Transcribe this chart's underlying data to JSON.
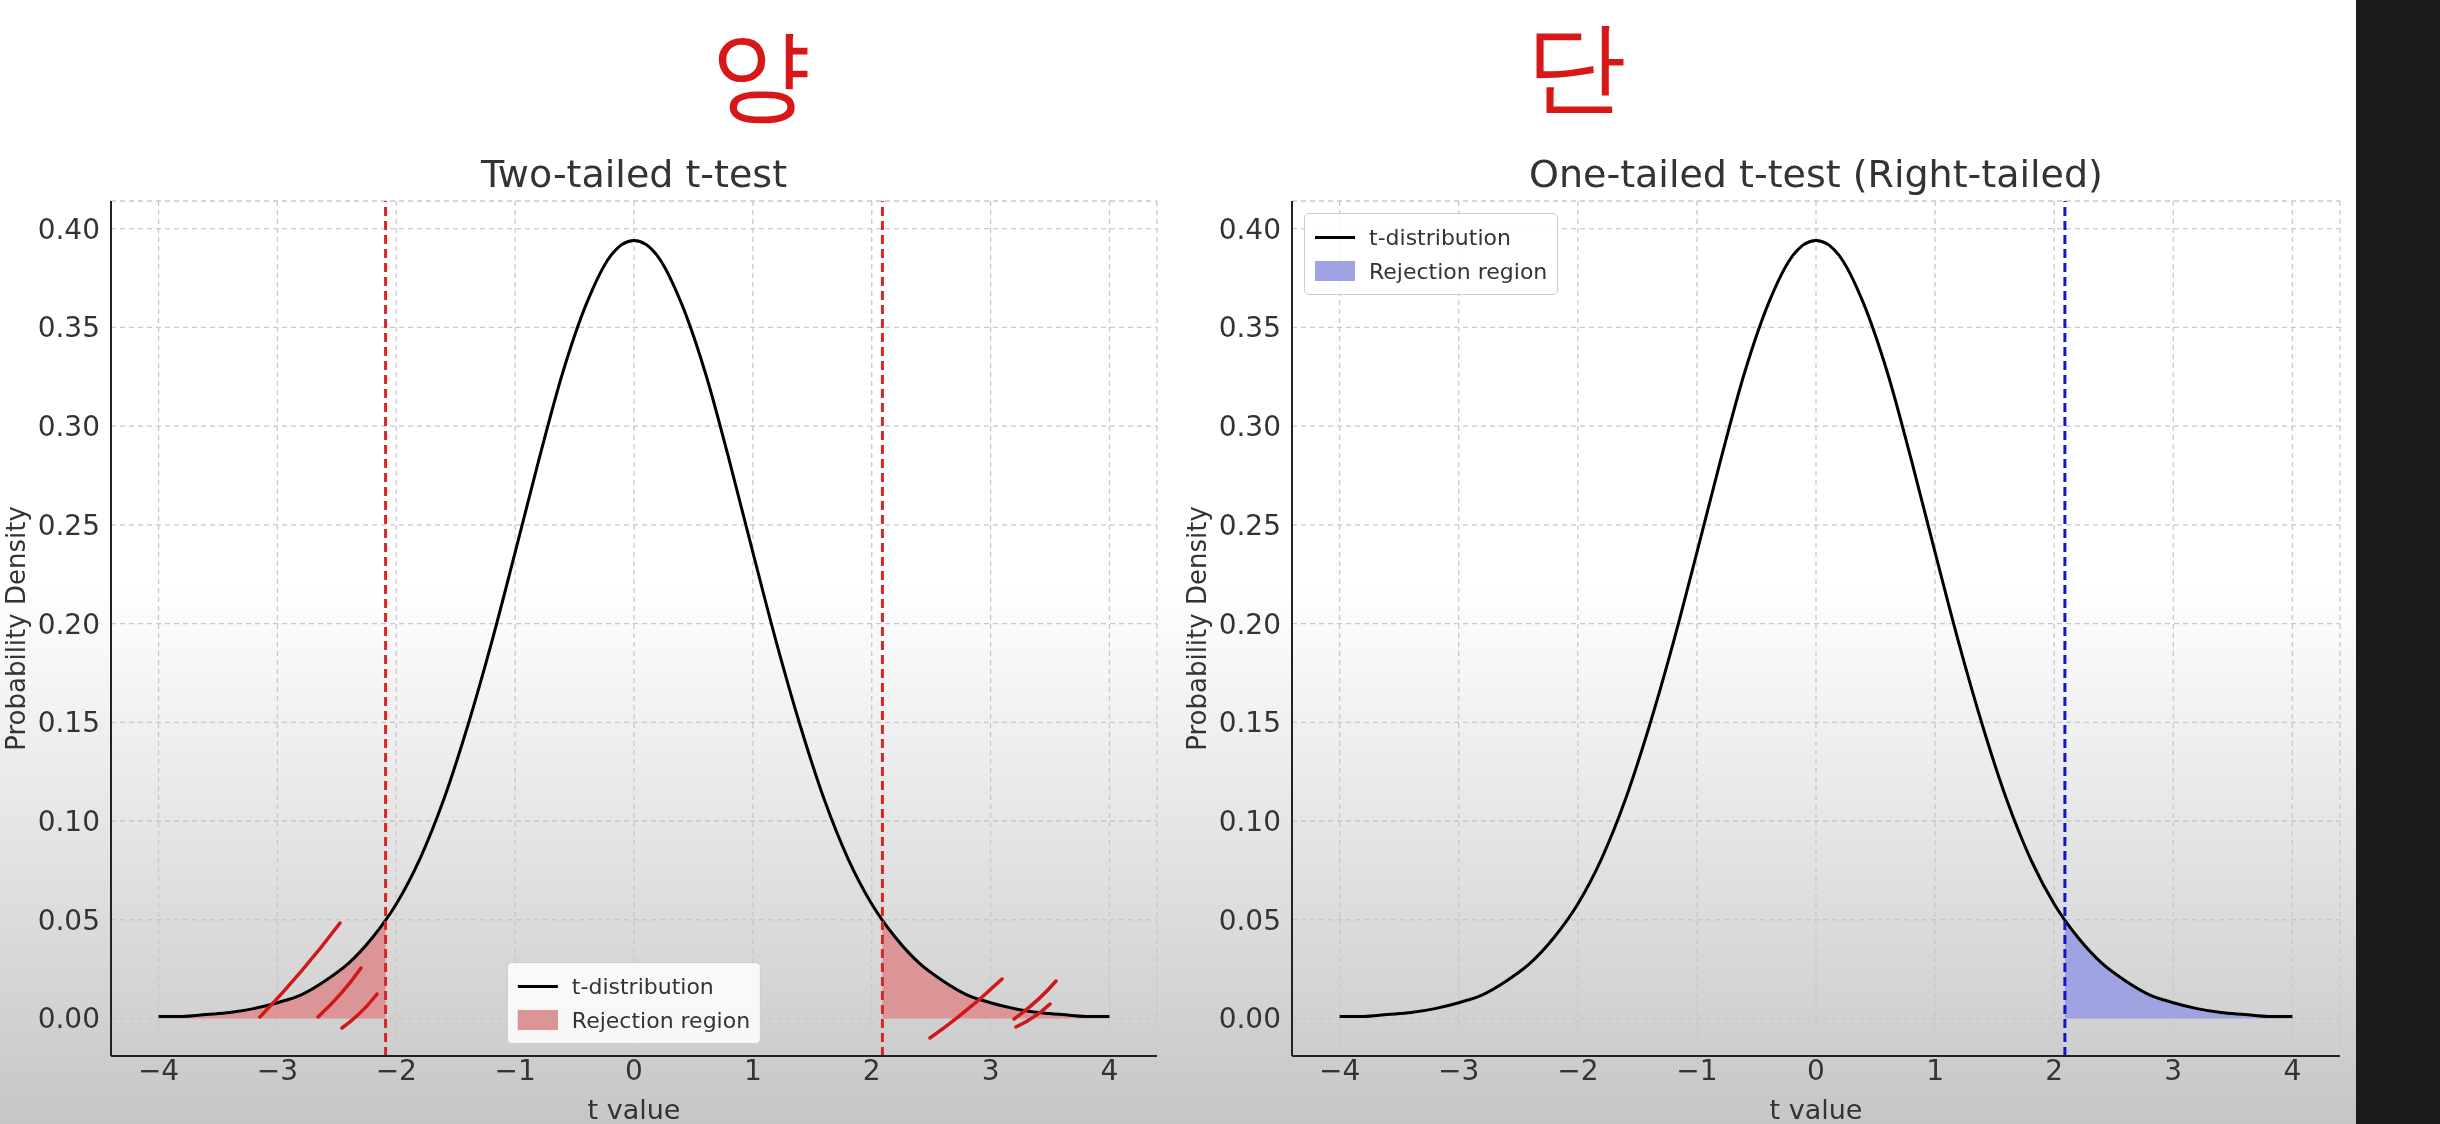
{
  "chart_data": [
    {
      "type": "line",
      "title": "Two-tailed t-test",
      "xlabel": "t value",
      "ylabel": "Probability Density",
      "annotations": [
        "양"
      ],
      "x": [
        -4,
        -3.8,
        -3.6,
        -3.4,
        -3.2,
        -3,
        -2.8,
        -2.6,
        -2.4,
        -2.2,
        -2,
        -1.8,
        -1.6,
        -1.4,
        -1.2,
        -1,
        -0.8,
        -0.6,
        -0.4,
        -0.2,
        0,
        0.2,
        0.4,
        0.6,
        0.8,
        1,
        1.2,
        1.4,
        1.6,
        1.8,
        2,
        2.2,
        2.4,
        2.6,
        2.8,
        3,
        3.2,
        3.4,
        3.6,
        3.8,
        4
      ],
      "series": [
        {
          "name": "t-distribution",
          "color": "#000000",
          "values": [
            0.001,
            0.001,
            0.002,
            0.003,
            0.005,
            0.008,
            0.012,
            0.019,
            0.028,
            0.041,
            0.058,
            0.081,
            0.111,
            0.148,
            0.19,
            0.236,
            0.283,
            0.327,
            0.362,
            0.386,
            0.394,
            0.386,
            0.362,
            0.327,
            0.283,
            0.236,
            0.19,
            0.148,
            0.111,
            0.081,
            0.058,
            0.041,
            0.028,
            0.019,
            0.012,
            0.008,
            0.005,
            0.003,
            0.002,
            0.001,
            0.001
          ]
        },
        {
          "name": "Rejection region",
          "type": "area",
          "color": "#dc9597",
          "x": [
            -4,
            -3.8,
            -3.6,
            -3.4,
            -3.2,
            -3,
            -2.8,
            -2.6,
            -2.4,
            -2.2,
            -2.09,
            0,
            2.09,
            2.2,
            2.4,
            2.6,
            2.8,
            3,
            3.2,
            3.4,
            3.6,
            3.8,
            4
          ],
          "values": [
            0.001,
            0.001,
            0.002,
            0.003,
            0.005,
            0.008,
            0.012,
            0.019,
            0.028,
            0.041,
            0.05,
            null,
            0.05,
            0.041,
            0.028,
            0.019,
            0.012,
            0.008,
            0.005,
            0.003,
            0.002,
            0.001,
            0.001
          ]
        }
      ],
      "xlim": [
        -4.4,
        4.4
      ],
      "ylim": [
        -0.019,
        0.414
      ],
      "xticks": [
        {
          "value": -4,
          "label": "−4"
        },
        {
          "value": -3,
          "label": "−3"
        },
        {
          "value": -2,
          "label": "−2"
        },
        {
          "value": -1,
          "label": "−1"
        },
        0,
        1,
        2,
        3,
        4
      ],
      "yticks": [
        {
          "value": 0,
          "label": "0.00"
        },
        {
          "value": 0.05,
          "label": "0.05"
        },
        {
          "value": 0.1,
          "label": "0.10"
        },
        {
          "value": 0.15,
          "label": "0.15"
        },
        {
          "value": 0.2,
          "label": "0.20"
        },
        {
          "value": 0.25,
          "label": "0.25"
        },
        {
          "value": 0.3,
          "label": "0.30"
        },
        {
          "value": 0.35,
          "label": "0.35"
        },
        {
          "value": 0.4,
          "label": "0.40"
        }
      ],
      "ref_lines": [
        {
          "axis": "x",
          "value": -2.09,
          "color": "#d62728",
          "line_style": "dashed"
        },
        {
          "axis": "x",
          "value": 2.09,
          "color": "#d62728",
          "line_style": "dashed"
        }
      ],
      "grid": true,
      "legend": "bottom"
    },
    {
      "type": "line",
      "title": "One-tailed t-test (Right-tailed)",
      "xlabel": "t value",
      "ylabel": "Probability Density",
      "annotations": [
        "단"
      ],
      "x": [
        -4,
        -3.8,
        -3.6,
        -3.4,
        -3.2,
        -3,
        -2.8,
        -2.6,
        -2.4,
        -2.2,
        -2,
        -1.8,
        -1.6,
        -1.4,
        -1.2,
        -1,
        -0.8,
        -0.6,
        -0.4,
        -0.2,
        0,
        0.2,
        0.4,
        0.6,
        0.8,
        1,
        1.2,
        1.4,
        1.6,
        1.8,
        2,
        2.2,
        2.4,
        2.6,
        2.8,
        3,
        3.2,
        3.4,
        3.6,
        3.8,
        4
      ],
      "series": [
        {
          "name": "t-distribution",
          "color": "#000000",
          "values": [
            0.001,
            0.001,
            0.002,
            0.003,
            0.005,
            0.008,
            0.012,
            0.019,
            0.028,
            0.041,
            0.058,
            0.081,
            0.111,
            0.148,
            0.19,
            0.236,
            0.283,
            0.327,
            0.362,
            0.386,
            0.394,
            0.386,
            0.362,
            0.327,
            0.283,
            0.236,
            0.19,
            0.148,
            0.111,
            0.081,
            0.058,
            0.041,
            0.028,
            0.019,
            0.012,
            0.008,
            0.005,
            0.003,
            0.002,
            0.001,
            0.001
          ]
        },
        {
          "name": "Rejection region",
          "type": "area",
          "color": "#9fa3e2",
          "x": [
            2.09,
            2.2,
            2.4,
            2.6,
            2.8,
            3,
            3.2,
            3.4,
            3.6,
            3.8,
            4
          ],
          "values": [
            0.05,
            0.041,
            0.028,
            0.019,
            0.012,
            0.008,
            0.005,
            0.003,
            0.002,
            0.001,
            0.001
          ]
        }
      ],
      "xlim": [
        -4.4,
        4.4
      ],
      "ylim": [
        -0.019,
        0.414
      ],
      "xticks": [
        {
          "value": -4,
          "label": "−4"
        },
        {
          "value": -3,
          "label": "−3"
        },
        {
          "value": -2,
          "label": "−2"
        },
        {
          "value": -1,
          "label": "−1"
        },
        0,
        1,
        2,
        3,
        4
      ],
      "yticks": [
        {
          "value": 0,
          "label": "0.00"
        },
        {
          "value": 0.05,
          "label": "0.05"
        },
        {
          "value": 0.1,
          "label": "0.10"
        },
        {
          "value": 0.15,
          "label": "0.15"
        },
        {
          "value": 0.2,
          "label": "0.20"
        },
        {
          "value": 0.25,
          "label": "0.25"
        },
        {
          "value": 0.3,
          "label": "0.30"
        },
        {
          "value": 0.35,
          "label": "0.35"
        },
        {
          "value": 0.4,
          "label": "0.40"
        }
      ],
      "ref_lines": [
        {
          "axis": "x",
          "value": 2.09,
          "color": "#1414c8",
          "line_style": "dashed"
        }
      ],
      "grid": true,
      "legend": "top left"
    }
  ]
}
